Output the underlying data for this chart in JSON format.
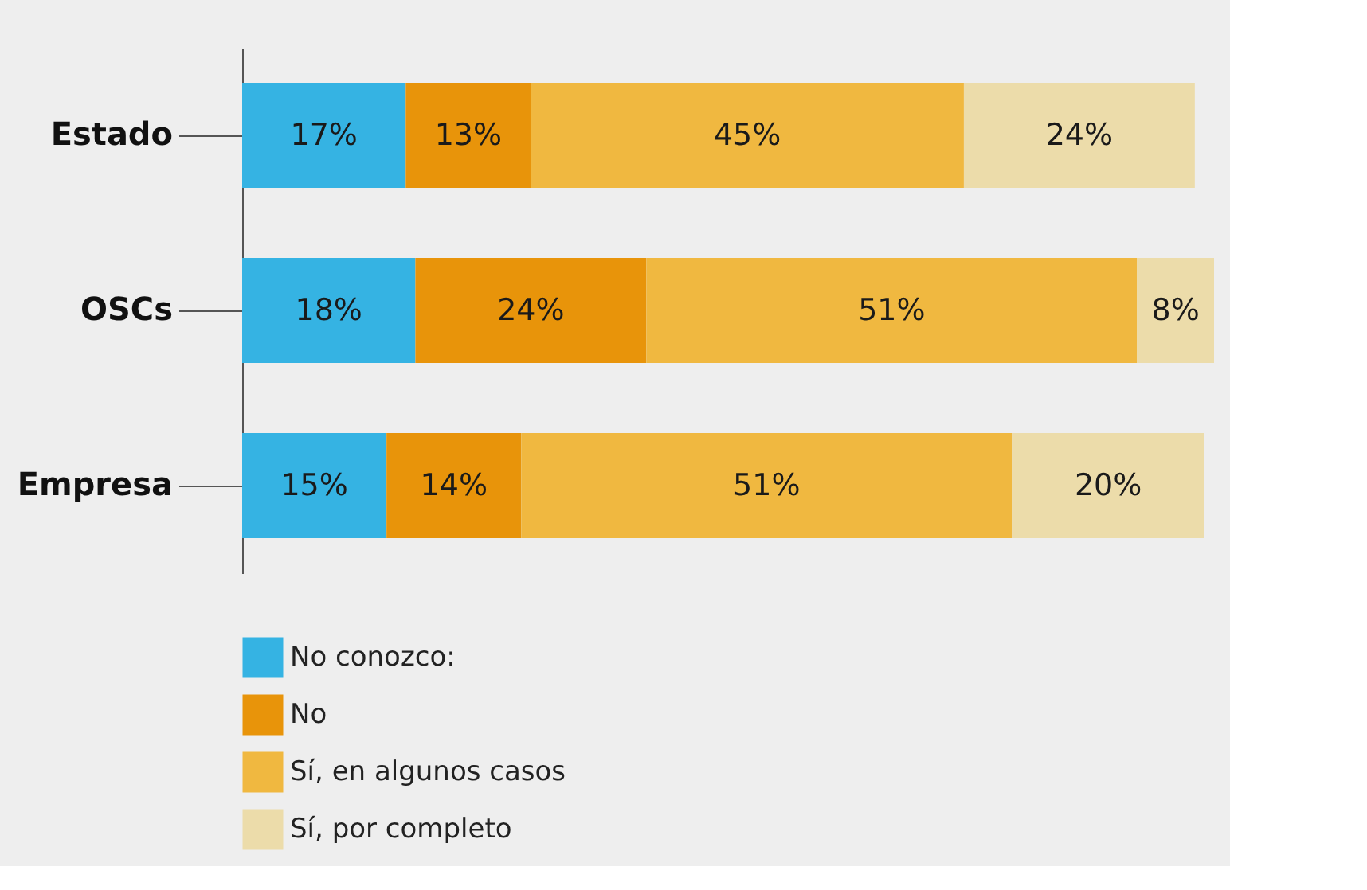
{
  "chart_data": {
    "type": "bar",
    "orientation": "horizontal",
    "stacked": true,
    "data_labels": true,
    "legend": "bottom",
    "categories": [
      "Estado",
      "OSCs",
      "Empresa"
    ],
    "series": [
      {
        "name": "No conozco:",
        "color": "#35b3e3",
        "values": [
          17,
          18,
          15
        ],
        "value_labels": [
          "17%",
          "18%",
          "15%"
        ]
      },
      {
        "name": "No",
        "color": "#e8940a",
        "values": [
          13,
          24,
          14
        ],
        "value_labels": [
          "13%",
          "24%",
          "14%"
        ]
      },
      {
        "name": "Sí, en algunos casos",
        "color": "#f0b840",
        "values": [
          45,
          51,
          51
        ],
        "value_labels": [
          "45%",
          "51%",
          "51%"
        ]
      },
      {
        "name": "Sí, por completo",
        "color": "#ecdcaa",
        "values": [
          24,
          8,
          20
        ],
        "value_labels": [
          "24%",
          "8%",
          "20%"
        ]
      }
    ]
  }
}
